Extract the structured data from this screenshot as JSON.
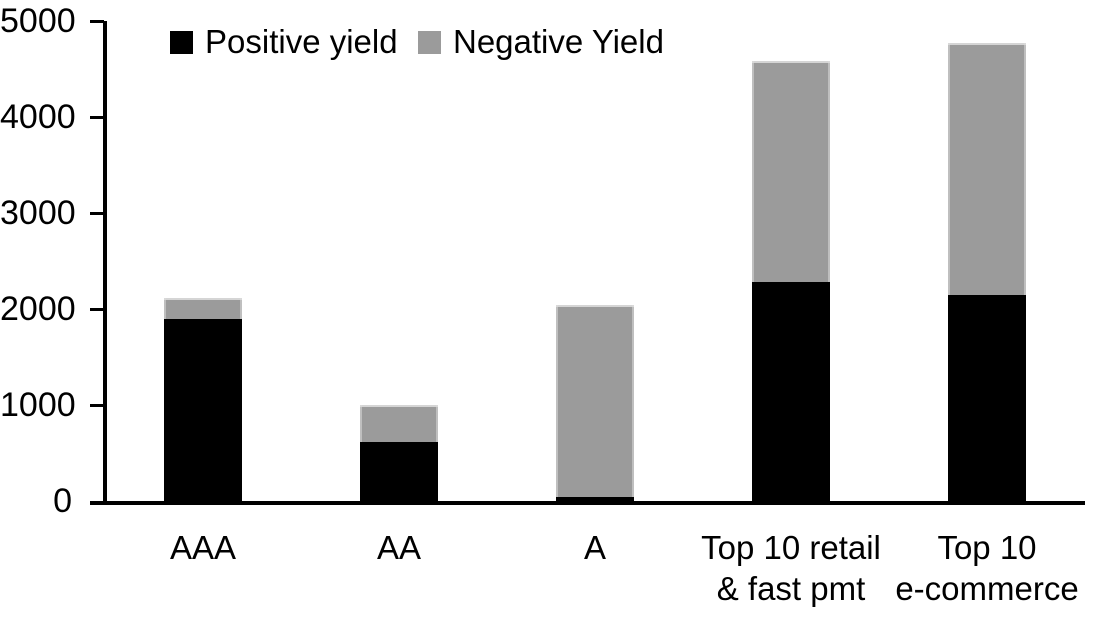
{
  "chart_data": {
    "type": "bar",
    "stacked": true,
    "title": "",
    "xlabel": "",
    "ylabel": "",
    "categories": [
      "AAA",
      "AA",
      "A",
      "Top 10 retail\n& fast pmt",
      "Top 10\ne-commerce"
    ],
    "series": [
      {
        "name": "Positive yield",
        "color": "#000000",
        "values": [
          1900,
          610,
          40,
          2285,
          2145
        ]
      },
      {
        "name": "Negative Yield",
        "color": "#9b9b9b",
        "values": [
          220,
          390,
          1995,
          2300,
          2630
        ]
      }
    ],
    "ylim": [
      0,
      5000
    ],
    "ytick_interval": 1000,
    "ytick_labels": [
      "0",
      "1000",
      "2000",
      "3000",
      "4000",
      "5000"
    ],
    "grid": false,
    "legend_position": "top-left-inside"
  },
  "colors": {
    "axis": "#000000",
    "background": "#ffffff",
    "positive": "#000000",
    "negative": "#9b9b9b"
  }
}
